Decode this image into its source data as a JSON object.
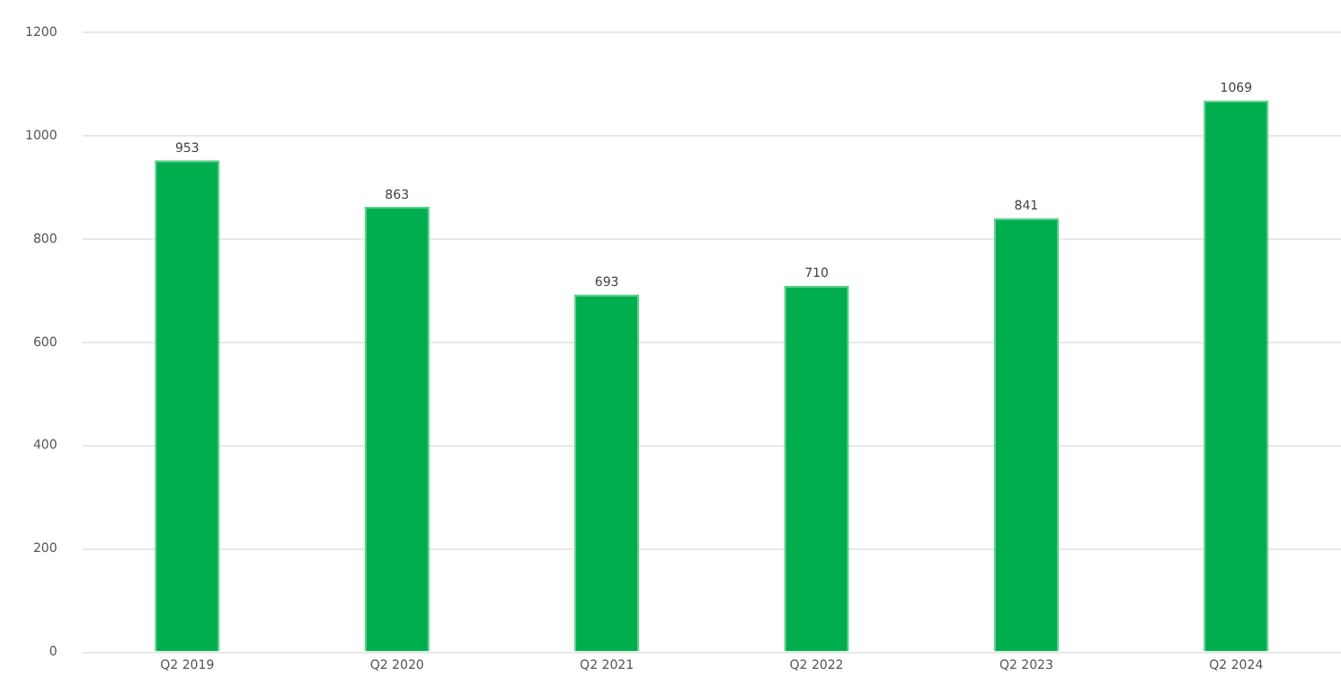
{
  "chart_data": {
    "type": "bar",
    "categories": [
      "Q2 2019",
      "Q2 2020",
      "Q2 2021",
      "Q2 2022",
      "Q2 2023",
      "Q2 2024"
    ],
    "values": [
      953,
      863,
      693,
      710,
      841,
      1069
    ],
    "color": "#00ae4d",
    "ylim": [
      0,
      1200
    ],
    "yticks": [
      0,
      200,
      400,
      600,
      800,
      1000,
      1200
    ],
    "grid": "y",
    "data_labels": true
  }
}
